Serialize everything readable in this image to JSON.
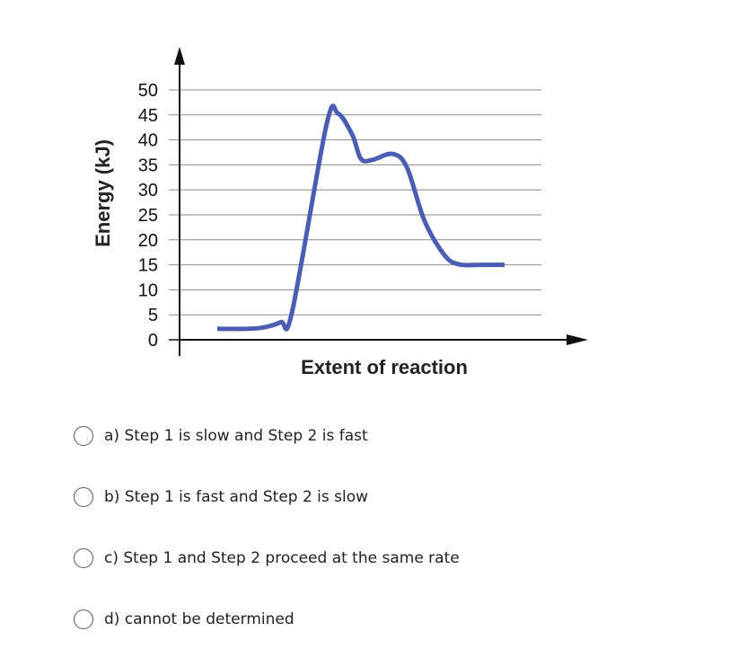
{
  "chart_data": {
    "type": "line",
    "ylabel": "Energy (kJ)",
    "xlabel": "Extent of reaction",
    "ylim": [
      0,
      50
    ],
    "yticks": [
      "0",
      "5",
      "10",
      "15",
      "20",
      "25",
      "30",
      "35",
      "40",
      "45",
      "50"
    ],
    "grid": true,
    "series": [
      {
        "color": "#4a5db3",
        "points": [
          [
            0.0,
            2.2
          ],
          [
            0.14,
            2.3
          ],
          [
            0.22,
            3.5
          ],
          [
            0.26,
            5.5
          ],
          [
            0.38,
            43.0
          ],
          [
            0.42,
            45.3
          ],
          [
            0.47,
            41.0
          ],
          [
            0.5,
            36.2
          ],
          [
            0.54,
            36.0
          ],
          [
            0.61,
            37.2
          ],
          [
            0.66,
            34.5
          ],
          [
            0.72,
            24.0
          ],
          [
            0.79,
            17.0
          ],
          [
            0.84,
            15.1
          ],
          [
            0.92,
            15.0
          ],
          [
            1.0,
            15.0
          ]
        ]
      }
    ]
  },
  "question": {
    "options": [
      "a) Step 1 is slow and Step 2 is fast",
      "b) Step 1 is fast and Step 2 is slow",
      "c) Step 1 and Step 2 proceed at the same rate",
      "d) cannot be determined"
    ]
  }
}
